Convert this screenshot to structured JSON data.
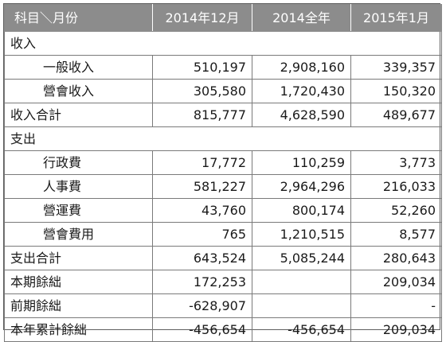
{
  "header": [
    "科目＼月份",
    "2014年12月",
    "2014全年",
    "2015年1月"
  ],
  "rows": [
    {
      "type": "section",
      "label": "收入"
    },
    {
      "type": "sub",
      "label": "一般收入",
      "values": [
        "510,197",
        "2,908,160",
        "339,357"
      ]
    },
    {
      "type": "sub",
      "label": "營會收入",
      "values": [
        "305,580",
        "1,720,430",
        "150,320"
      ]
    },
    {
      "type": "total",
      "label": "收入合計",
      "values": [
        "815,777",
        "4,628,590",
        "489,677"
      ]
    },
    {
      "type": "section",
      "label": "支出"
    },
    {
      "type": "sub",
      "label": "行政費",
      "values": [
        "17,772",
        "110,259",
        "3,773"
      ]
    },
    {
      "type": "sub",
      "label": "人事費",
      "values": [
        "581,227",
        "2,964,296",
        "216,033"
      ]
    },
    {
      "type": "sub",
      "label": "營運費",
      "values": [
        "43,760",
        "800,174",
        "52,260"
      ]
    },
    {
      "type": "sub",
      "label": "營會費用",
      "values": [
        "765",
        "1,210,515",
        "8,577"
      ]
    },
    {
      "type": "total",
      "label": "支出合計",
      "values": [
        "643,524",
        "5,085,244",
        "280,643"
      ]
    },
    {
      "type": "total",
      "label": "本期餘絀",
      "values": [
        "172,253",
        "",
        "209,034"
      ]
    },
    {
      "type": "total",
      "label": "前期餘絀",
      "values": [
        "-628,907",
        "",
        "-"
      ]
    },
    {
      "type": "total",
      "label": "本年累計餘絀",
      "values": [
        "-456,654",
        "-456,654",
        "209,034"
      ]
    }
  ]
}
